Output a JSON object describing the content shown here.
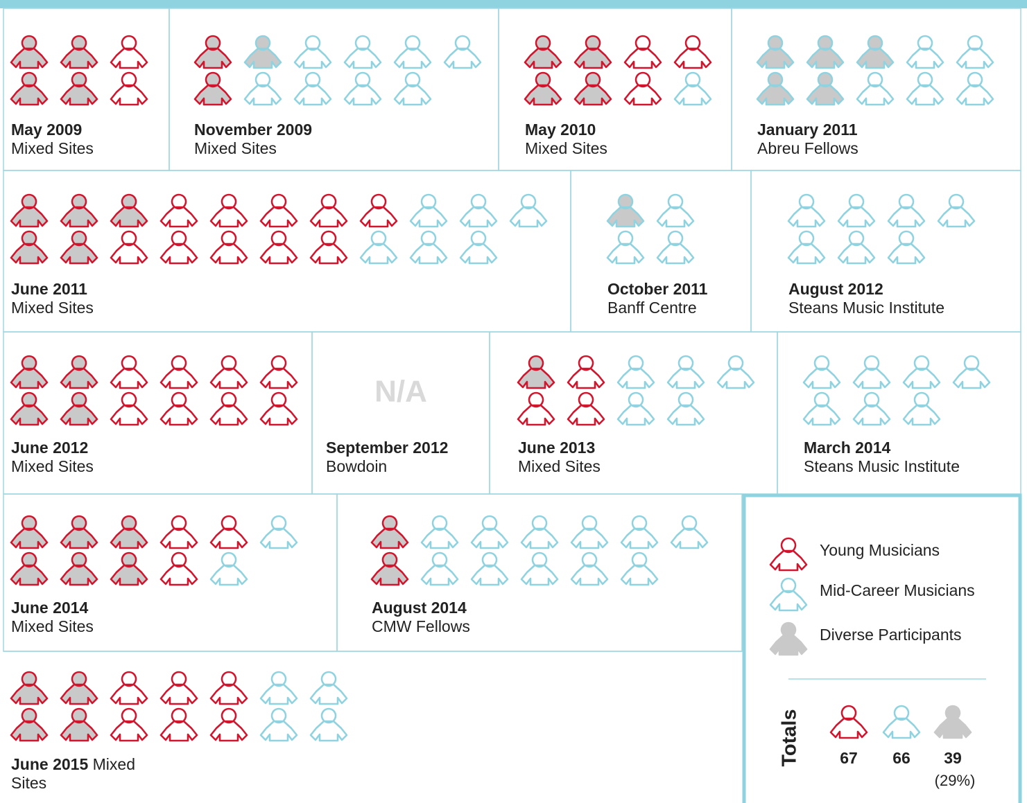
{
  "colors": {
    "young": "#d2142c",
    "mid": "#8fd3e0",
    "diverse": "#c9c9c9",
    "border": "#9fd8e3"
  },
  "cohorts": [
    {
      "date": "May 2009",
      "site": "Mixed Sites",
      "young": 6,
      "young_diverse": 4,
      "mid": 0,
      "mid_diverse": 0
    },
    {
      "date": "November 2009",
      "site": "Mixed Sites",
      "young": 2,
      "young_diverse": 2,
      "mid": 9,
      "mid_diverse": 1
    },
    {
      "date": "May 2010",
      "site": "Mixed Sites",
      "young": 7,
      "young_diverse": 4,
      "mid": 1,
      "mid_diverse": 0
    },
    {
      "date": "January 2011",
      "site": "Abreu Fellows",
      "young": 0,
      "young_diverse": 0,
      "mid": 10,
      "mid_diverse": 5
    },
    {
      "date": "June 2011",
      "site": "Mixed Sites",
      "young": 15,
      "young_diverse": 5,
      "mid": 6,
      "mid_diverse": 0
    },
    {
      "date": "October 2011",
      "site": "Banff Centre",
      "young": 0,
      "young_diverse": 0,
      "mid": 4,
      "mid_diverse": 1
    },
    {
      "date": "August 2012",
      "site": "Steans Music Institute",
      "young": 0,
      "young_diverse": 0,
      "mid": 7,
      "mid_diverse": 0
    },
    {
      "date": "June 2012",
      "site": "Mixed Sites",
      "young": 12,
      "young_diverse": 4,
      "mid": 0,
      "mid_diverse": 0
    },
    {
      "date": "September 2012",
      "site": "Bowdoin",
      "note": "N/A"
    },
    {
      "date": "June 2013",
      "site": "Mixed Sites",
      "young": 4,
      "young_diverse": 1,
      "mid": 5,
      "mid_diverse": 0
    },
    {
      "date": "March 2014",
      "site": "Steans Music Institute",
      "young": 0,
      "young_diverse": 0,
      "mid": 7,
      "mid_diverse": 0
    },
    {
      "date": "June 2014",
      "site": "Mixed Sites",
      "young": 9,
      "young_diverse": 6,
      "mid": 2,
      "mid_diverse": 0
    },
    {
      "date": "August 2014",
      "site": "CMW Fellows",
      "young": 2,
      "young_diverse": 2,
      "mid": 11,
      "mid_diverse": 0
    },
    {
      "date": "June 2015",
      "site": "Mixed Sites",
      "young": 10,
      "young_diverse": 4,
      "mid": 4,
      "mid_diverse": 0
    }
  ],
  "legend": {
    "young": "Young Musicians",
    "mid": "Mid-Career Musicians",
    "diverse": "Diverse Participants"
  },
  "totals": {
    "label": "Totals",
    "young": 67,
    "mid": 66,
    "diverse": 39,
    "diverse_share": "(29%)"
  }
}
